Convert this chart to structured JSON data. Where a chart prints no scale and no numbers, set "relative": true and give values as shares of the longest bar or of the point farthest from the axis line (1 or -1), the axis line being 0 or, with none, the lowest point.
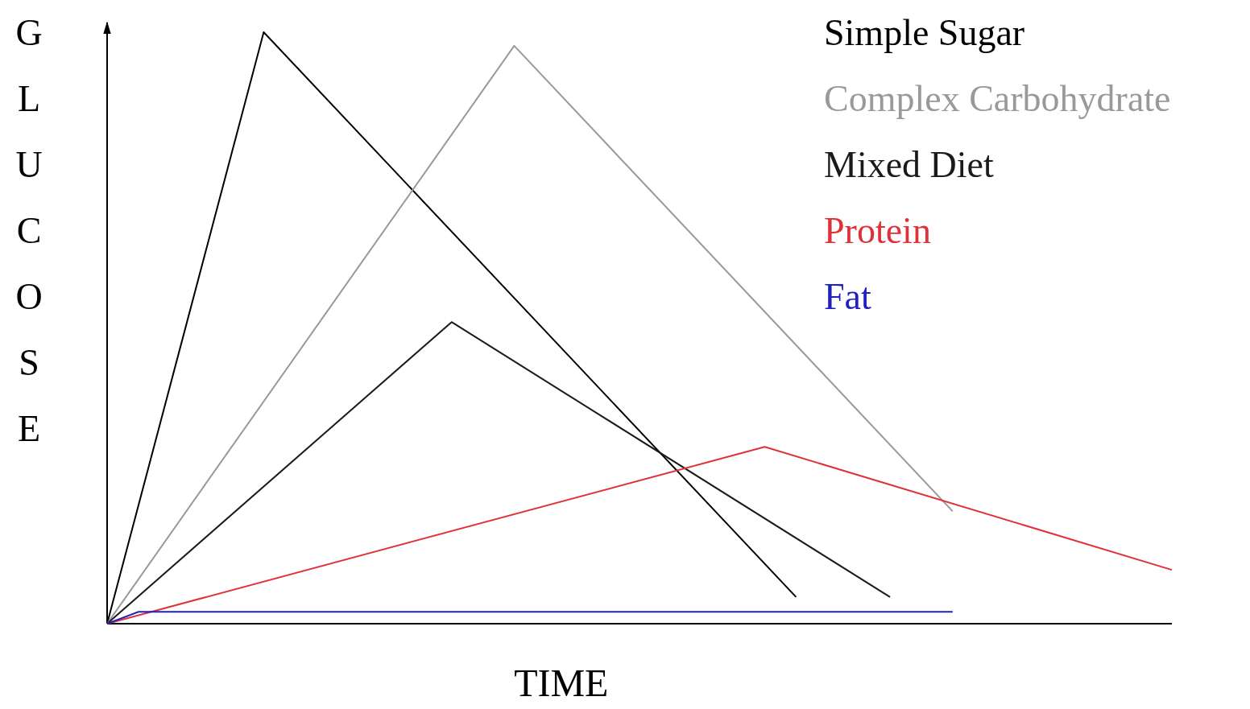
{
  "chart_data": {
    "type": "line",
    "relative": true,
    "xlabel": "TIME",
    "ylabel": "GLUCOSE",
    "line_style": "solid",
    "categories": [
      null,
      null,
      null,
      null,
      null,
      null,
      null,
      null,
      null,
      null,
      null,
      null,
      null,
      null,
      null,
      null,
      null,
      null,
      null,
      null,
      null,
      null,
      null,
      null,
      null,
      null,
      null,
      null,
      null,
      null,
      null,
      null,
      null,
      null,
      null
    ],
    "series": [
      {
        "name": "Simple Sugar",
        "color": "#000000",
        "values": [
          0,
          null,
          null,
          null,
          null,
          1,
          null,
          null,
          null,
          null,
          null,
          null,
          null,
          null,
          null,
          null,
          null,
          null,
          null,
          null,
          null,
          null,
          0.045,
          null,
          null,
          null,
          null,
          null,
          null,
          null,
          null,
          null,
          null,
          null,
          null
        ]
      },
      {
        "name": "Complex Carbohydrate",
        "color": "#999999",
        "values": [
          0,
          null,
          null,
          null,
          null,
          null,
          null,
          null,
          null,
          null,
          null,
          null,
          null,
          0.977,
          null,
          null,
          null,
          null,
          null,
          null,
          null,
          null,
          null,
          null,
          null,
          null,
          null,
          0.19,
          null,
          null,
          null,
          null,
          null,
          null,
          null
        ]
      },
      {
        "name": "Mixed Diet",
        "color": "#1a1a1a",
        "values": [
          0,
          null,
          null,
          null,
          null,
          null,
          null,
          null,
          null,
          null,
          null,
          0.51,
          null,
          null,
          null,
          null,
          null,
          null,
          null,
          null,
          null,
          null,
          null,
          null,
          null,
          0.045,
          null,
          null,
          null,
          null,
          null,
          null,
          null,
          null,
          null
        ]
      },
      {
        "name": "Protein",
        "color": "#e0303a",
        "values": [
          0,
          null,
          null,
          null,
          null,
          null,
          null,
          null,
          null,
          null,
          null,
          null,
          null,
          null,
          null,
          null,
          null,
          null,
          null,
          null,
          null,
          0.299,
          null,
          null,
          null,
          null,
          null,
          null,
          null,
          null,
          null,
          null,
          null,
          null,
          0.091
        ]
      },
      {
        "name": "Fat",
        "color": "#2020c0",
        "values": [
          0,
          0.02,
          null,
          null,
          null,
          null,
          null,
          null,
          null,
          null,
          null,
          null,
          null,
          null,
          null,
          null,
          null,
          null,
          null,
          null,
          null,
          null,
          null,
          null,
          null,
          null,
          null,
          0.02,
          null,
          null,
          null,
          null,
          null,
          null,
          null
        ]
      }
    ]
  }
}
